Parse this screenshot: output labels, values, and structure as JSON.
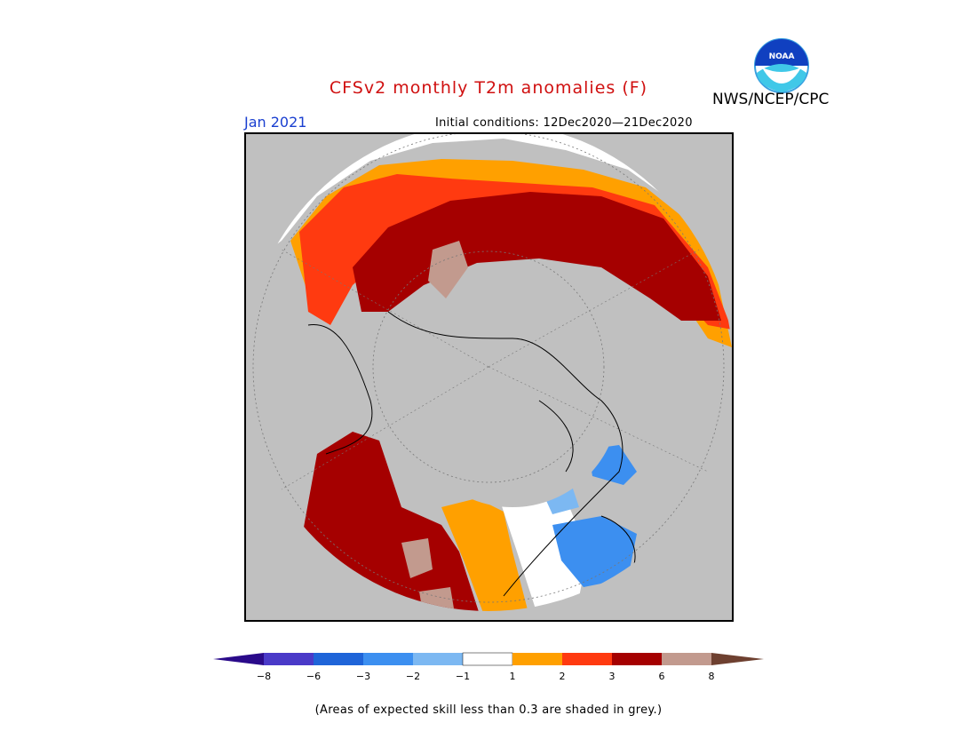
{
  "header": {
    "title": "CFSv2 monthly T2m anomalies (F)",
    "month": "Jan 2021",
    "initial_conditions": "Initial conditions: 12Dec2020—21Dec2020",
    "credit": "NWS/NCEP/CPC",
    "logo_text": "NOAA"
  },
  "colors": {
    "skill_grey": "#c0c0c0",
    "ocean_grey": "#c0c0c0",
    "bins": [
      "#2a0a8a",
      "#4a3ac8",
      "#1f64d8",
      "#3c8ff0",
      "#7cb8f2",
      "#ffffff",
      "#ffa000",
      "#ff3a10",
      "#a50000",
      "#c29a8e",
      "#6e4030"
    ]
  },
  "legend": {
    "tick_labels": [
      "−8",
      "−6",
      "−3",
      "−2",
      "−1",
      "1",
      "2",
      "3",
      "6",
      "8"
    ]
  },
  "footnote": "(Areas of expected skill less than 0.3 are shaded in grey.)"
}
